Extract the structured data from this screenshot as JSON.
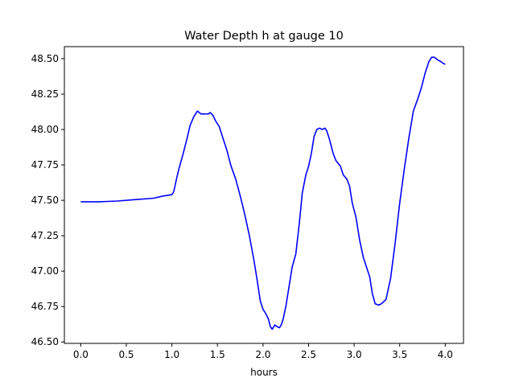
{
  "chart_data": {
    "type": "line",
    "title": "Water Depth h at gauge 10",
    "xlabel": "hours",
    "ylabel": "",
    "xlim": [
      -0.18,
      4.2
    ],
    "ylim": [
      46.49,
      48.585
    ],
    "xticks": [
      0.0,
      0.5,
      1.0,
      1.5,
      2.0,
      2.5,
      3.0,
      3.5,
      4.0
    ],
    "xtick_labels": [
      "0.0",
      "0.5",
      "1.0",
      "1.5",
      "2.0",
      "2.5",
      "3.0",
      "3.5",
      "4.0"
    ],
    "yticks": [
      46.5,
      46.75,
      47.0,
      47.25,
      47.5,
      47.75,
      48.0,
      48.25,
      48.5
    ],
    "ytick_labels": [
      "46.50",
      "46.75",
      "47.00",
      "47.25",
      "47.50",
      "47.75",
      "48.00",
      "48.25",
      "48.50"
    ],
    "grid": false,
    "series": [
      {
        "color": "#0000ff",
        "x": [
          0.0,
          0.2,
          0.4,
          0.6,
          0.8,
          0.9,
          1.0,
          1.02,
          1.05,
          1.08,
          1.12,
          1.16,
          1.2,
          1.24,
          1.28,
          1.32,
          1.36,
          1.4,
          1.42,
          1.45,
          1.48,
          1.52,
          1.56,
          1.6,
          1.65,
          1.7,
          1.75,
          1.8,
          1.85,
          1.9,
          1.93,
          1.97,
          2.0,
          2.03,
          2.06,
          2.08,
          2.1,
          2.13,
          2.15,
          2.18,
          2.2,
          2.22,
          2.25,
          2.28,
          2.32,
          2.36,
          2.4,
          2.43,
          2.47,
          2.5,
          2.53,
          2.56,
          2.59,
          2.62,
          2.65,
          2.68,
          2.7,
          2.73,
          2.77,
          2.8,
          2.85,
          2.88,
          2.92,
          2.95,
          2.98,
          3.02,
          3.06,
          3.1,
          3.13,
          3.17,
          3.2,
          3.23,
          3.27,
          3.3,
          3.35,
          3.4,
          3.45,
          3.5,
          3.55,
          3.6,
          3.65,
          3.7,
          3.74,
          3.78,
          3.82,
          3.85,
          3.88,
          3.92,
          3.95,
          3.97,
          4.0
        ],
        "y": [
          47.49,
          47.49,
          47.495,
          47.505,
          47.515,
          47.53,
          47.54,
          47.56,
          47.65,
          47.73,
          47.82,
          47.92,
          48.03,
          48.09,
          48.13,
          48.11,
          48.11,
          48.11,
          48.12,
          48.1,
          48.06,
          48.02,
          47.94,
          47.86,
          47.74,
          47.65,
          47.53,
          47.4,
          47.25,
          47.08,
          46.96,
          46.79,
          46.73,
          46.7,
          46.66,
          46.61,
          46.59,
          46.62,
          46.61,
          46.6,
          46.62,
          46.66,
          46.75,
          46.87,
          47.03,
          47.12,
          47.35,
          47.55,
          47.68,
          47.74,
          47.83,
          47.95,
          48.0,
          48.01,
          48.0,
          48.01,
          47.99,
          47.93,
          47.83,
          47.78,
          47.74,
          47.68,
          47.65,
          47.6,
          47.48,
          47.38,
          47.22,
          47.1,
          47.04,
          46.96,
          46.84,
          46.77,
          46.76,
          46.77,
          46.8,
          46.95,
          47.2,
          47.48,
          47.72,
          47.94,
          48.13,
          48.22,
          48.3,
          48.4,
          48.48,
          48.51,
          48.51,
          48.49,
          48.48,
          48.47,
          48.46
        ]
      }
    ]
  }
}
